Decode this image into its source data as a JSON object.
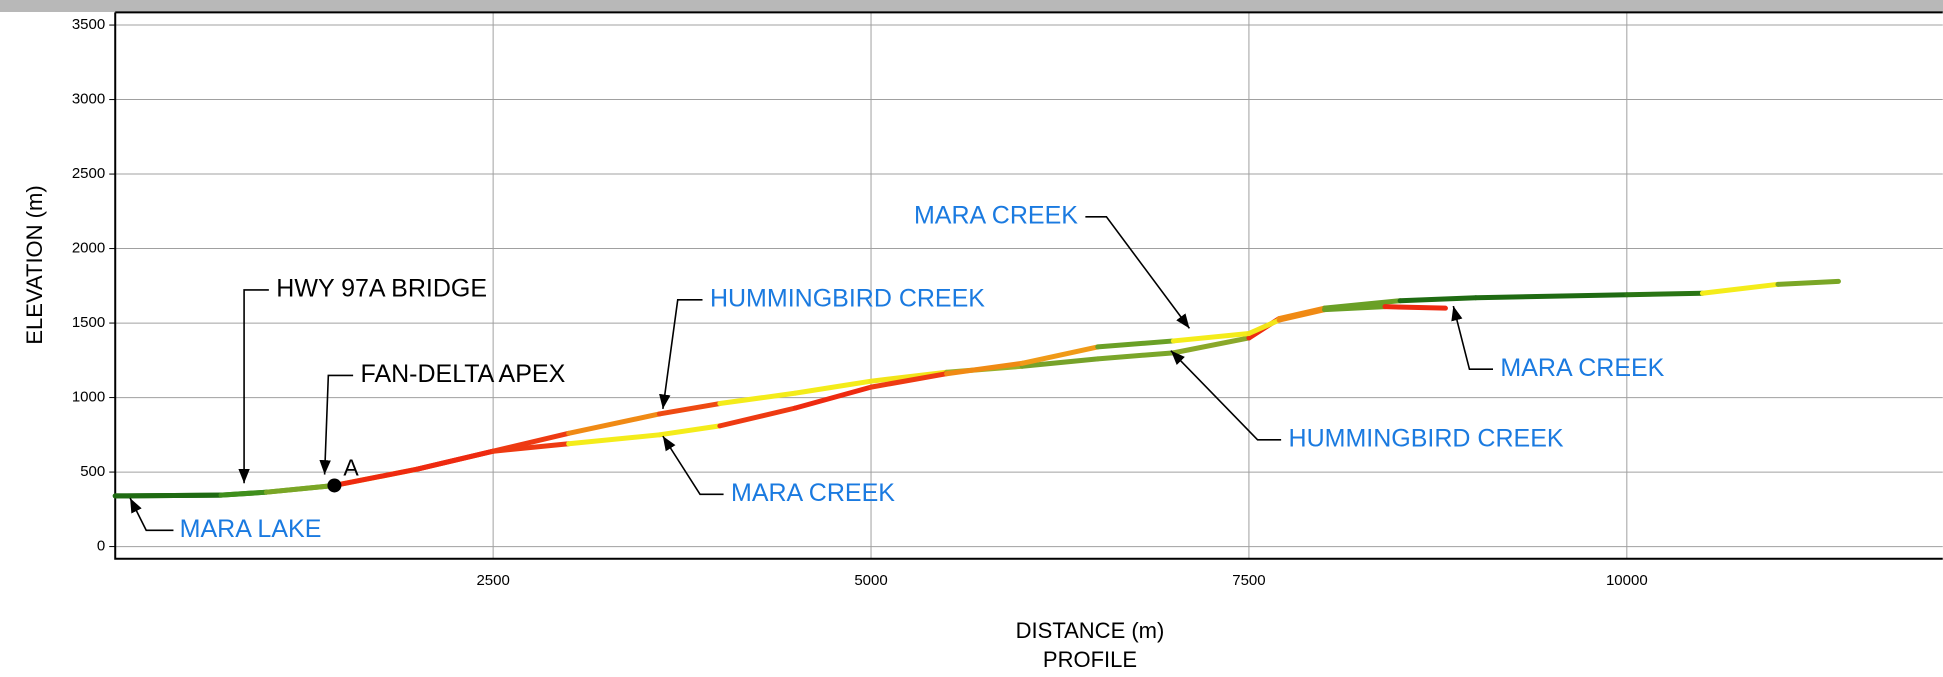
{
  "chart_data": {
    "type": "line",
    "x_label": "DISTANCE (m)",
    "subtitle": "PROFILE",
    "y_label": "ELEVATION (m)",
    "xlim": [
      0,
      12090
    ],
    "ylim": [
      -82,
      3585
    ],
    "xticks": [
      2500,
      5000,
      7500,
      10000
    ],
    "yticks": [
      0,
      500,
      1000,
      1500,
      2000,
      2500,
      3000,
      3500
    ],
    "grid": true,
    "series": [
      {
        "name": "HUMMINGBIRD CREEK",
        "x": [
          0,
          700,
          1000,
          1450,
          2000,
          2500,
          3000,
          3600,
          4000,
          4500,
          5000,
          5500,
          6000,
          6500,
          7000,
          7500,
          7700,
          8000,
          8500,
          9000,
          10000,
          10500,
          11000,
          11400
        ],
        "values": [
          340,
          345,
          365,
          410,
          520,
          640,
          760,
          890,
          960,
          1030,
          1110,
          1170,
          1210,
          1260,
          1300,
          1400,
          1530,
          1600,
          1650,
          1670,
          1690,
          1700,
          1760,
          1780
        ],
        "colors": [
          "#1f6b12",
          "#3f8f1c",
          "#7aa626",
          "#f2e20f",
          "#ee2a10",
          "#ee3a12",
          "#f08a14",
          "#ee4a12",
          "#f4ec1a",
          "#f4ec1a",
          "#f2e41a",
          "#9bb02a",
          "#76a22a",
          "#7aa62a",
          "#8aa82a",
          "#ee2a10",
          "#f08a14",
          "#6aa026",
          "#1f6b12",
          "#1f6b12",
          "#2a7514",
          "#f4ec1a",
          "#7aa626"
        ]
      },
      {
        "name": "MARA CREEK",
        "x": [
          0,
          700,
          1000,
          1450,
          2000,
          2500,
          3000,
          3600,
          4000,
          4500,
          5000,
          5500,
          6000,
          6500,
          7000,
          7500,
          7700,
          8000,
          8400,
          8800
        ],
        "values": [
          340,
          345,
          365,
          410,
          520,
          640,
          690,
          750,
          810,
          930,
          1070,
          1160,
          1230,
          1340,
          1380,
          1430,
          1520,
          1590,
          1610,
          1600
        ],
        "colors": [
          "#1f6b12",
          "#3f8f1c",
          "#7aa626",
          "#ee2a10",
          "#ee2a10",
          "#ee3a12",
          "#f4ec1a",
          "#f4ec1a",
          "#ee3a12",
          "#ee2a10",
          "#ee3a12",
          "#f08a14",
          "#f09a18",
          "#6aa026",
          "#f4ec1a",
          "#f2e41a",
          "#f08a14",
          "#6aa026",
          "#ee2a10"
        ]
      }
    ],
    "points": [
      {
        "label": "A",
        "x": 1450,
        "y": 410
      }
    ],
    "annotations": [
      {
        "text": "HWY 97A BRIDGE",
        "color": "#000000"
      },
      {
        "text": "FAN-DELTA APEX",
        "color": "#000000"
      },
      {
        "text": "MARA LAKE",
        "color": "#1a7ae0"
      },
      {
        "text": "HUMMINGBIRD CREEK",
        "color": "#1a7ae0"
      },
      {
        "text": "MARA CREEK",
        "color": "#1a7ae0"
      },
      {
        "text": "MARA CREEK",
        "color": "#1a7ae0"
      },
      {
        "text": "MARA CREEK",
        "color": "#1a7ae0"
      },
      {
        "text": "HUMMINGBIRD CREEK",
        "color": "#1a7ae0"
      }
    ]
  }
}
